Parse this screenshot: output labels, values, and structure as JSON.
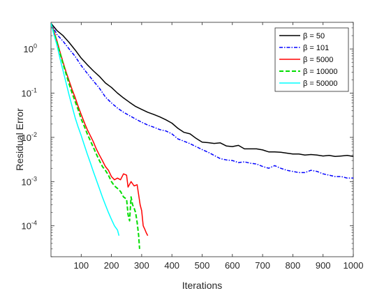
{
  "chart_data": {
    "type": "line",
    "xlabel": "Iterations",
    "ylabel": "Residual Error",
    "yscale": "log",
    "xlim": [
      0,
      1000
    ],
    "ylim": [
      2e-05,
      4
    ],
    "xticks": [
      100,
      200,
      300,
      400,
      500,
      600,
      700,
      800,
      900,
      1000
    ],
    "yticks": [
      {
        "value": 1,
        "label": "10",
        "exp": "0"
      },
      {
        "value": 0.1,
        "label": "10",
        "exp": "-1"
      },
      {
        "value": 0.01,
        "label": "10",
        "exp": "-2"
      },
      {
        "value": 0.001,
        "label": "10",
        "exp": "-3"
      },
      {
        "value": 0.0001,
        "label": "10",
        "exp": "-4"
      }
    ],
    "grid": false,
    "legend_position": "top-right",
    "series": [
      {
        "name": "β = 50",
        "color": "#000000",
        "dash": "solid",
        "points": [
          [
            0,
            3.8
          ],
          [
            20,
            2.6
          ],
          [
            40,
            2.0
          ],
          [
            60,
            1.4
          ],
          [
            80,
            0.95
          ],
          [
            100,
            0.62
          ],
          [
            120,
            0.44
          ],
          [
            140,
            0.32
          ],
          [
            160,
            0.24
          ],
          [
            180,
            0.17
          ],
          [
            200,
            0.135
          ],
          [
            220,
            0.1
          ],
          [
            240,
            0.078
          ],
          [
            260,
            0.062
          ],
          [
            280,
            0.05
          ],
          [
            300,
            0.043
          ],
          [
            320,
            0.037
          ],
          [
            340,
            0.033
          ],
          [
            360,
            0.029
          ],
          [
            380,
            0.025
          ],
          [
            400,
            0.021
          ],
          [
            420,
            0.016
          ],
          [
            440,
            0.013
          ],
          [
            460,
            0.012
          ],
          [
            480,
            0.0095
          ],
          [
            500,
            0.0078
          ],
          [
            520,
            0.0076
          ],
          [
            540,
            0.0073
          ],
          [
            560,
            0.0075
          ],
          [
            580,
            0.0064
          ],
          [
            600,
            0.0062
          ],
          [
            620,
            0.0066
          ],
          [
            640,
            0.0055
          ],
          [
            660,
            0.0055
          ],
          [
            680,
            0.0055
          ],
          [
            700,
            0.0052
          ],
          [
            720,
            0.0047
          ],
          [
            740,
            0.0047
          ],
          [
            760,
            0.0046
          ],
          [
            780,
            0.0044
          ],
          [
            800,
            0.0042
          ],
          [
            820,
            0.0042
          ],
          [
            840,
            0.004
          ],
          [
            860,
            0.0041
          ],
          [
            880,
            0.004
          ],
          [
            900,
            0.0038
          ],
          [
            920,
            0.0039
          ],
          [
            940,
            0.0037
          ],
          [
            960,
            0.0038
          ],
          [
            980,
            0.0039
          ],
          [
            1000,
            0.0037
          ]
        ]
      },
      {
        "name": "β = 101",
        "color": "#0000ff",
        "dash": "dashdot",
        "points": [
          [
            0,
            3.8
          ],
          [
            20,
            2.1
          ],
          [
            40,
            1.5
          ],
          [
            60,
            1.0
          ],
          [
            80,
            0.68
          ],
          [
            100,
            0.42
          ],
          [
            120,
            0.28
          ],
          [
            140,
            0.19
          ],
          [
            160,
            0.13
          ],
          [
            180,
            0.082
          ],
          [
            200,
            0.06
          ],
          [
            220,
            0.046
          ],
          [
            240,
            0.037
          ],
          [
            260,
            0.031
          ],
          [
            280,
            0.026
          ],
          [
            300,
            0.022
          ],
          [
            320,
            0.019
          ],
          [
            340,
            0.017
          ],
          [
            360,
            0.015
          ],
          [
            380,
            0.014
          ],
          [
            400,
            0.012
          ],
          [
            420,
            0.0092
          ],
          [
            440,
            0.0082
          ],
          [
            460,
            0.0072
          ],
          [
            480,
            0.0062
          ],
          [
            500,
            0.0053
          ],
          [
            520,
            0.0046
          ],
          [
            540,
            0.0039
          ],
          [
            560,
            0.0033
          ],
          [
            580,
            0.0031
          ],
          [
            600,
            0.003
          ],
          [
            620,
            0.0027
          ],
          [
            640,
            0.0028
          ],
          [
            660,
            0.0026
          ],
          [
            680,
            0.0025
          ],
          [
            700,
            0.0022
          ],
          [
            720,
            0.002
          ],
          [
            740,
            0.0023
          ],
          [
            760,
            0.002
          ],
          [
            780,
            0.0018
          ],
          [
            800,
            0.0017
          ],
          [
            820,
            0.0016
          ],
          [
            840,
            0.0016
          ],
          [
            860,
            0.0018
          ],
          [
            880,
            0.0017
          ],
          [
            900,
            0.0015
          ],
          [
            920,
            0.0014
          ],
          [
            940,
            0.0013
          ],
          [
            960,
            0.0013
          ],
          [
            980,
            0.0012
          ],
          [
            1000,
            0.0012
          ]
        ]
      },
      {
        "name": "β = 5000",
        "color": "#ff0000",
        "dash": "solid",
        "points": [
          [
            0,
            3.8
          ],
          [
            10,
            2.5
          ],
          [
            20,
            1.5
          ],
          [
            30,
            0.85
          ],
          [
            40,
            0.5
          ],
          [
            50,
            0.3
          ],
          [
            60,
            0.19
          ],
          [
            70,
            0.12
          ],
          [
            80,
            0.08
          ],
          [
            90,
            0.05
          ],
          [
            100,
            0.033
          ],
          [
            110,
            0.022
          ],
          [
            120,
            0.015
          ],
          [
            130,
            0.011
          ],
          [
            140,
            0.008
          ],
          [
            150,
            0.0055
          ],
          [
            160,
            0.004
          ],
          [
            170,
            0.003
          ],
          [
            180,
            0.0022
          ],
          [
            190,
            0.0018
          ],
          [
            200,
            0.0013
          ],
          [
            210,
            0.0011
          ],
          [
            220,
            0.0012
          ],
          [
            230,
            0.0011
          ],
          [
            240,
            0.0015
          ],
          [
            250,
            0.0014
          ],
          [
            255,
            0.00075
          ],
          [
            265,
            0.001
          ],
          [
            275,
            0.0008
          ],
          [
            285,
            0.00085
          ],
          [
            290,
            0.0005
          ],
          [
            295,
            0.0003
          ],
          [
            300,
            0.00022
          ],
          [
            305,
            0.0001
          ],
          [
            310,
            8.5e-05
          ],
          [
            315,
            7e-05
          ],
          [
            320,
            6e-05
          ]
        ]
      },
      {
        "name": "β = 10000",
        "color": "#00dd00",
        "dash": "dashed",
        "points": [
          [
            0,
            3.8
          ],
          [
            10,
            2.3
          ],
          [
            20,
            1.4
          ],
          [
            30,
            0.8
          ],
          [
            40,
            0.46
          ],
          [
            50,
            0.27
          ],
          [
            60,
            0.16
          ],
          [
            70,
            0.1
          ],
          [
            80,
            0.065
          ],
          [
            90,
            0.042
          ],
          [
            100,
            0.026
          ],
          [
            110,
            0.018
          ],
          [
            120,
            0.012
          ],
          [
            130,
            0.0085
          ],
          [
            140,
            0.006
          ],
          [
            150,
            0.0042
          ],
          [
            160,
            0.003
          ],
          [
            170,
            0.0022
          ],
          [
            180,
            0.0018
          ],
          [
            190,
            0.0014
          ],
          [
            200,
            0.001
          ],
          [
            210,
            0.0008
          ],
          [
            220,
            0.0007
          ],
          [
            230,
            0.0006
          ],
          [
            240,
            0.00045
          ],
          [
            250,
            0.0004
          ],
          [
            255,
            0.00018
          ],
          [
            260,
            0.00013
          ],
          [
            265,
            0.00045
          ],
          [
            270,
            0.0003
          ],
          [
            275,
            0.00025
          ],
          [
            280,
            0.0002
          ],
          [
            285,
            0.00012
          ],
          [
            290,
            6e-05
          ],
          [
            293,
            3e-05
          ]
        ]
      },
      {
        "name": "β = 50000",
        "color": "#00ffff",
        "dash": "solid",
        "points": [
          [
            0,
            3.8
          ],
          [
            10,
            2.1
          ],
          [
            20,
            1.2
          ],
          [
            30,
            0.6
          ],
          [
            40,
            0.32
          ],
          [
            50,
            0.17
          ],
          [
            60,
            0.09
          ],
          [
            70,
            0.05
          ],
          [
            80,
            0.028
          ],
          [
            90,
            0.017
          ],
          [
            100,
            0.011
          ],
          [
            110,
            0.0068
          ],
          [
            120,
            0.0042
          ],
          [
            130,
            0.0027
          ],
          [
            140,
            0.0017
          ],
          [
            150,
            0.0011
          ],
          [
            160,
            0.0007
          ],
          [
            170,
            0.00045
          ],
          [
            180,
            0.0003
          ],
          [
            190,
            0.0002
          ],
          [
            200,
            0.00014
          ],
          [
            210,
            0.0001
          ],
          [
            220,
            8e-05
          ],
          [
            225,
            6e-05
          ]
        ]
      }
    ]
  }
}
